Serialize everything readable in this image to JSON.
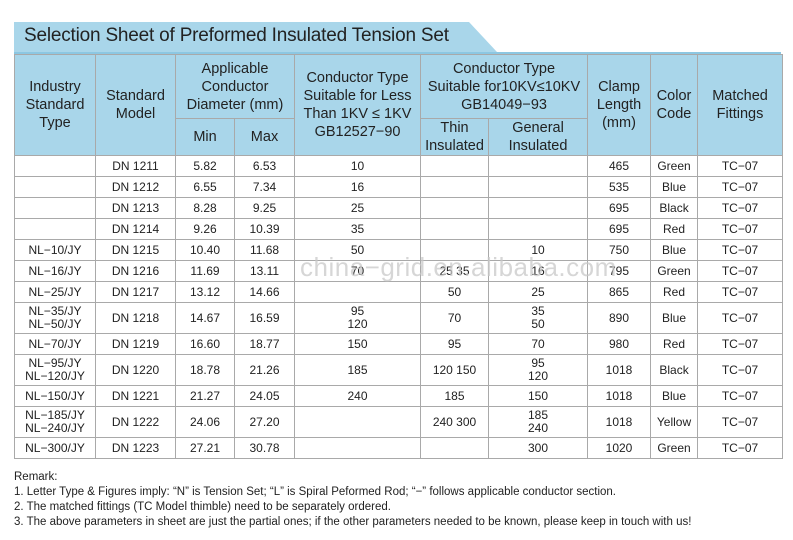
{
  "title": "Selection Sheet of Preformed Insulated Tension Set",
  "headers": {
    "industry": [
      "Industry",
      "Standard",
      "Type"
    ],
    "model": [
      "Standard",
      "Model"
    ],
    "diameter": [
      "Applicable",
      "Conductor",
      "Diameter (mm)"
    ],
    "min": "Min",
    "max": "Max",
    "low_voltage": [
      "Conductor Type",
      "Suitable for Less",
      "Than 1KV ≤ 1KV",
      "GB12527−90"
    ],
    "ten_kv": [
      "Conductor Type",
      "Suitable for10KV≤10KV",
      "GB14049−93"
    ],
    "thin": [
      "Thin",
      "Insulated"
    ],
    "general": [
      "General",
      "Insulated"
    ],
    "clamp": [
      "Clamp",
      "Length",
      "(mm)"
    ],
    "color": [
      "Color",
      "Code"
    ],
    "fittings": [
      "Matched",
      "Fittings"
    ]
  },
  "rows": [
    {
      "type": [],
      "model": "DN  1211",
      "min": "5.82",
      "max": "6.53",
      "low": [
        "10"
      ],
      "thin": [],
      "general": [],
      "clamp": "465",
      "color": "Green",
      "fitting": "TC−07"
    },
    {
      "type": [],
      "model": "DN  1212",
      "min": "6.55",
      "max": "7.34",
      "low": [
        "16"
      ],
      "thin": [],
      "general": [],
      "clamp": "535",
      "color": "Blue",
      "fitting": "TC−07"
    },
    {
      "type": [],
      "model": "DN  1213",
      "min": "8.28",
      "max": "9.25",
      "low": [
        "25"
      ],
      "thin": [],
      "general": [],
      "clamp": "695",
      "color": "Black",
      "fitting": "TC−07"
    },
    {
      "type": [],
      "model": "DN  1214",
      "min": "9.26",
      "max": "10.39",
      "low": [
        "35"
      ],
      "thin": [],
      "general": [],
      "clamp": "695",
      "color": "Red",
      "fitting": "TC−07"
    },
    {
      "type": [
        "NL−10/JY"
      ],
      "model": "DN  1215",
      "min": "10.40",
      "max": "11.68",
      "low": [
        "50"
      ],
      "thin": [],
      "general": [
        "10"
      ],
      "clamp": "750",
      "color": "Blue",
      "fitting": "TC−07"
    },
    {
      "type": [
        "NL−16/JY"
      ],
      "model": "DN  1216",
      "min": "11.69",
      "max": "13.11",
      "low": [
        "70"
      ],
      "thin": [
        "25  35"
      ],
      "general": [
        "16"
      ],
      "clamp": "795",
      "color": "Green",
      "fitting": "TC−07"
    },
    {
      "type": [
        "NL−25/JY"
      ],
      "model": "DN  1217",
      "min": "13.12",
      "max": "14.66",
      "low": [],
      "thin": [
        "50"
      ],
      "general": [
        "25"
      ],
      "clamp": "865",
      "color": "Red",
      "fitting": "TC−07"
    },
    {
      "type": [
        "NL−35/JY",
        "NL−50/JY"
      ],
      "model": "DN  1218",
      "min": "14.67",
      "max": "16.59",
      "low": [
        "95",
        "120"
      ],
      "thin": [
        "70"
      ],
      "general": [
        "35",
        "50"
      ],
      "clamp": "890",
      "color": "Blue",
      "fitting": "TC−07"
    },
    {
      "type": [
        "NL−70/JY"
      ],
      "model": "DN  1219",
      "min": "16.60",
      "max": "18.77",
      "low": [
        "150"
      ],
      "thin": [
        "95"
      ],
      "general": [
        "70"
      ],
      "clamp": "980",
      "color": "Red",
      "fitting": "TC−07"
    },
    {
      "type": [
        "NL−95/JY",
        "NL−120/JY"
      ],
      "model": "DN  1220",
      "min": "18.78",
      "max": "21.26",
      "low": [
        "185"
      ],
      "thin": [
        "120  150"
      ],
      "general": [
        "95",
        "120"
      ],
      "clamp": "1018",
      "color": "Black",
      "fitting": "TC−07"
    },
    {
      "type": [
        "NL−150/JY"
      ],
      "model": "DN  1221",
      "min": "21.27",
      "max": "24.05",
      "low": [
        "240"
      ],
      "thin": [
        "185"
      ],
      "general": [
        "150"
      ],
      "clamp": "1018",
      "color": "Blue",
      "fitting": "TC−07"
    },
    {
      "type": [
        "NL−185/JY",
        "NL−240/JY"
      ],
      "model": "DN  1222",
      "min": "24.06",
      "max": "27.20",
      "low": [],
      "thin": [
        "240  300"
      ],
      "general": [
        "185",
        "240"
      ],
      "clamp": "1018",
      "color": "Yellow",
      "fitting": "TC−07"
    },
    {
      "type": [
        "NL−300/JY"
      ],
      "model": "DN  1223",
      "min": "27.21",
      "max": "30.78",
      "low": [],
      "thin": [],
      "general": [
        "300"
      ],
      "clamp": "1020",
      "color": "Green",
      "fitting": "TC−07"
    }
  ],
  "watermark": "china−grid.en.alibaba.com",
  "remarks": [
    "Remark:",
    "1. Letter Type & Figures imply:  “N”  is Tension Set;  “L”  is Spiral Peformed Rod;  “−”  follows applicable conductor section.",
    "2. The matched fittings (TC Model thimble) need to be separately ordered.",
    "3. The above parameters in sheet are just the partial ones; if the other parameters needed to be known, please keep in touch with us!"
  ]
}
